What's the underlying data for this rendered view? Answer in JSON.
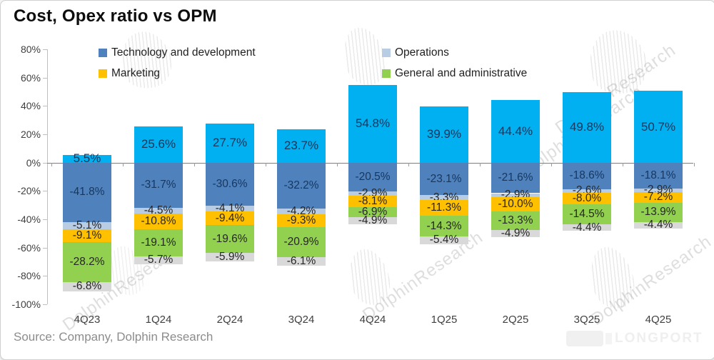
{
  "title": "Cost, Opex ratio vs OPM",
  "source": "Source: Company, Dolphin Research",
  "watermark": {
    "text": "DolphinResearch",
    "brand": "LONGPORT"
  },
  "legend": {
    "items": [
      {
        "label": "Technology and development",
        "color": "#4F81BD"
      },
      {
        "label": "Marketing",
        "color": "#FFC000"
      },
      {
        "label": "Operations",
        "color": "#B8CCE4"
      },
      {
        "label": "General and administrative",
        "color": "#92D050"
      }
    ]
  },
  "chart_data": {
    "type": "bar",
    "stacked": true,
    "title": "Cost, Opex ratio vs OPM",
    "xlabel": "",
    "ylabel": "",
    "ylim": [
      -100,
      80
    ],
    "y_ticks": [
      80,
      60,
      40,
      20,
      0,
      -20,
      -40,
      -60,
      -80,
      -100
    ],
    "y_tick_suffix": "%",
    "grid": false,
    "legend_position": "top",
    "categories": [
      "4Q23",
      "1Q24",
      "2Q24",
      "3Q24",
      "4Q24",
      "1Q25",
      "2Q25",
      "3Q25",
      "4Q25"
    ],
    "series": [
      {
        "name": "OPM",
        "color": "#00B0F0",
        "label_color": "#17375E",
        "values": [
          5.5,
          25.6,
          27.7,
          23.7,
          54.8,
          39.9,
          44.4,
          49.8,
          50.7
        ]
      },
      {
        "name": "Technology and development",
        "color": "#4F81BD",
        "label_color": "#17375E",
        "values": [
          -41.8,
          -31.7,
          -30.6,
          -32.2,
          -20.5,
          -23.1,
          -21.6,
          -18.6,
          -18.1
        ]
      },
      {
        "name": "Operations",
        "color": "#B8CCE4",
        "label_color": "#262626",
        "values": [
          -5.1,
          -4.5,
          -4.1,
          -4.2,
          -2.9,
          -3.3,
          -2.9,
          -2.6,
          -2.9
        ]
      },
      {
        "name": "Marketing",
        "color": "#FFC000",
        "label_color": "#262626",
        "values": [
          -9.1,
          -10.8,
          -9.4,
          -9.3,
          -8.1,
          -11.3,
          -10.0,
          -8.0,
          -7.2
        ]
      },
      {
        "name": "General and administrative",
        "color": "#92D050",
        "label_color": "#262626",
        "values": [
          -28.2,
          -19.1,
          -19.6,
          -20.9,
          -6.9,
          -14.3,
          -13.3,
          -14.5,
          -13.9
        ]
      },
      {
        "name": "",
        "color": "#D9D9D9",
        "label_color": "#262626",
        "values": [
          -6.8,
          -5.7,
          -5.9,
          -6.1,
          -4.9,
          -5.4,
          -4.9,
          -4.4,
          -4.4
        ]
      }
    ]
  }
}
